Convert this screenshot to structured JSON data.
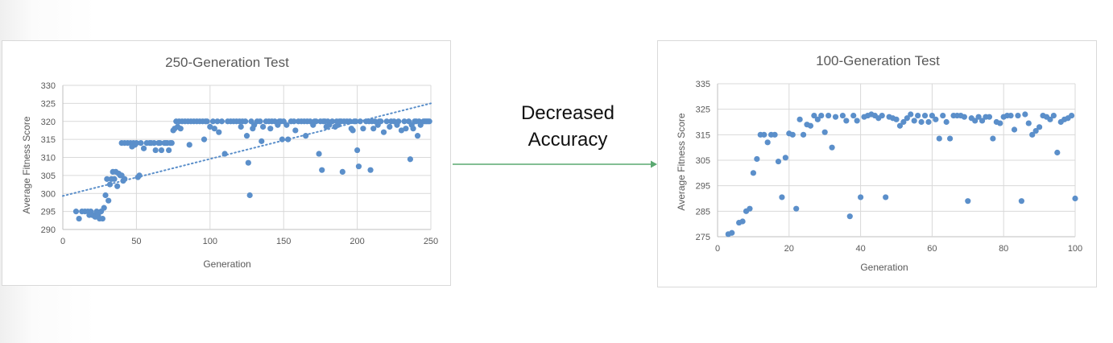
{
  "caption": {
    "line1": "Decreased",
    "line2": "Accuracy"
  },
  "colors": {
    "marker": "#5b8fca",
    "arrow": "#5aa870",
    "grid": "#d9d9d9",
    "text": "#595959"
  },
  "chart_data": [
    {
      "type": "scatter",
      "title": "250-Generation Test",
      "xlabel": "Generation",
      "ylabel": "Average Fitness Score",
      "xlim": [
        0,
        250
      ],
      "ylim": [
        290,
        330
      ],
      "xticks": [
        0,
        50,
        100,
        150,
        200,
        250
      ],
      "yticks": [
        290,
        295,
        300,
        305,
        310,
        315,
        320,
        325,
        330
      ],
      "grid": true,
      "legend": "none",
      "trendline": {
        "type": "linear",
        "style": "dotted",
        "points": [
          [
            0,
            299.3
          ],
          [
            250,
            325
          ]
        ]
      },
      "series": [
        {
          "points": [
            [
              9,
              295
            ],
            [
              11,
              293
            ],
            [
              13,
              295
            ],
            [
              15,
              295
            ],
            [
              17,
              295
            ],
            [
              18,
              294
            ],
            [
              19,
              295
            ],
            [
              20,
              294
            ],
            [
              21,
              294
            ],
            [
              22,
              293.5
            ],
            [
              23,
              295
            ],
            [
              24,
              294
            ],
            [
              25,
              293
            ],
            [
              26,
              295
            ],
            [
              27,
              293
            ],
            [
              28,
              296
            ],
            [
              29,
              299.5
            ],
            [
              30,
              304
            ],
            [
              31,
              298
            ],
            [
              32,
              302.5
            ],
            [
              33,
              304
            ],
            [
              34,
              306
            ],
            [
              35,
              304
            ],
            [
              36,
              306
            ],
            [
              37,
              302
            ],
            [
              38,
              305.5
            ],
            [
              39,
              305
            ],
            [
              40,
              305
            ],
            [
              41,
              303.5
            ],
            [
              42,
              304
            ],
            [
              40,
              314
            ],
            [
              42,
              314
            ],
            [
              44,
              314
            ],
            [
              46,
              314
            ],
            [
              47,
              313
            ],
            [
              48,
              314
            ],
            [
              49,
              313.5
            ],
            [
              50,
              314
            ],
            [
              51,
              304.5
            ],
            [
              52,
              305
            ],
            [
              53,
              314
            ],
            [
              55,
              312.5
            ],
            [
              57,
              314
            ],
            [
              59,
              314
            ],
            [
              60,
              314
            ],
            [
              62,
              314
            ],
            [
              63,
              312
            ],
            [
              65,
              314
            ],
            [
              66,
              314
            ],
            [
              67,
              312
            ],
            [
              69,
              314
            ],
            [
              70,
              314
            ],
            [
              71,
              314
            ],
            [
              72,
              312
            ],
            [
              73,
              314
            ],
            [
              74,
              314
            ],
            [
              75,
              317.5
            ],
            [
              76,
              318
            ],
            [
              77,
              320
            ],
            [
              78,
              318.5
            ],
            [
              79,
              320
            ],
            [
              80,
              318
            ],
            [
              81,
              320
            ],
            [
              83,
              320
            ],
            [
              85,
              320
            ],
            [
              86,
              313.5
            ],
            [
              87,
              320
            ],
            [
              89,
              320
            ],
            [
              91,
              320
            ],
            [
              93,
              320
            ],
            [
              95,
              320
            ],
            [
              96,
              315
            ],
            [
              97,
              320
            ],
            [
              98,
              320
            ],
            [
              100,
              318.5
            ],
            [
              102,
              320
            ],
            [
              103,
              318
            ],
            [
              105,
              320
            ],
            [
              106,
              317
            ],
            [
              108,
              320
            ],
            [
              110,
              311
            ],
            [
              112,
              320
            ],
            [
              114,
              320
            ],
            [
              116,
              320
            ],
            [
              118,
              320
            ],
            [
              120,
              320
            ],
            [
              121,
              318.5
            ],
            [
              122,
              320
            ],
            [
              124,
              320
            ],
            [
              125,
              316
            ],
            [
              126,
              308.5
            ],
            [
              127,
              299.5
            ],
            [
              128,
              320
            ],
            [
              129,
              318
            ],
            [
              130,
              319
            ],
            [
              132,
              320
            ],
            [
              134,
              320
            ],
            [
              135,
              314.5
            ],
            [
              136,
              318.5
            ],
            [
              138,
              320
            ],
            [
              140,
              320
            ],
            [
              141,
              318
            ],
            [
              142,
              320
            ],
            [
              144,
              320
            ],
            [
              146,
              319
            ],
            [
              147,
              320
            ],
            [
              148,
              320
            ],
            [
              149,
              315
            ],
            [
              150,
              320
            ],
            [
              152,
              319
            ],
            [
              153,
              315
            ],
            [
              155,
              320
            ],
            [
              157,
              320
            ],
            [
              158,
              317.5
            ],
            [
              160,
              320
            ],
            [
              162,
              320
            ],
            [
              164,
              320
            ],
            [
              165,
              316
            ],
            [
              166,
              320
            ],
            [
              168,
              320
            ],
            [
              170,
              319
            ],
            [
              171,
              320
            ],
            [
              172,
              320
            ],
            [
              174,
              311
            ],
            [
              175,
              320
            ],
            [
              176,
              306.5
            ],
            [
              177,
              320
            ],
            [
              178,
              320
            ],
            [
              179,
              318.5
            ],
            [
              180,
              320
            ],
            [
              181,
              319
            ],
            [
              183,
              320
            ],
            [
              185,
              318.5
            ],
            [
              186,
              320
            ],
            [
              187,
              319
            ],
            [
              188,
              320
            ],
            [
              189,
              320
            ],
            [
              190,
              306
            ],
            [
              191,
              320
            ],
            [
              193,
              320
            ],
            [
              195,
              320
            ],
            [
              196,
              318
            ],
            [
              197,
              317.5
            ],
            [
              198,
              320
            ],
            [
              199,
              320
            ],
            [
              200,
              312
            ],
            [
              201,
              307.5
            ],
            [
              202,
              320
            ],
            [
              204,
              318
            ],
            [
              206,
              320
            ],
            [
              208,
              320
            ],
            [
              209,
              306.5
            ],
            [
              210,
              320
            ],
            [
              211,
              318
            ],
            [
              212,
              320
            ],
            [
              214,
              319
            ],
            [
              215,
              320
            ],
            [
              216,
              320
            ],
            [
              218,
              317
            ],
            [
              220,
              320
            ],
            [
              222,
              318.5
            ],
            [
              223,
              320
            ],
            [
              225,
              320
            ],
            [
              227,
              319
            ],
            [
              228,
              320
            ],
            [
              230,
              317.5
            ],
            [
              232,
              320
            ],
            [
              233,
              318
            ],
            [
              235,
              320
            ],
            [
              236,
              309.5
            ],
            [
              237,
              319
            ],
            [
              238,
              318
            ],
            [
              239,
              320
            ],
            [
              240,
              320
            ],
            [
              241,
              316
            ],
            [
              242,
              320
            ],
            [
              243,
              319
            ],
            [
              245,
              320
            ],
            [
              246,
              320
            ],
            [
              247,
              320
            ],
            [
              248,
              320
            ],
            [
              249,
              320
            ]
          ]
        }
      ]
    },
    {
      "type": "scatter",
      "title": "100-Generation Test",
      "xlabel": "Generation",
      "ylabel": "Average Fitness Score",
      "xlim": [
        0,
        100
      ],
      "ylim": [
        275,
        335
      ],
      "xticks": [
        0,
        20,
        40,
        60,
        80,
        100
      ],
      "yticks": [
        275,
        285,
        295,
        305,
        315,
        325,
        335
      ],
      "grid": true,
      "legend": "none",
      "series": [
        {
          "points": [
            [
              3,
              276
            ],
            [
              4,
              276.5
            ],
            [
              6,
              280.5
            ],
            [
              7,
              281
            ],
            [
              8,
              285
            ],
            [
              9,
              286
            ],
            [
              10,
              300
            ],
            [
              11,
              305.5
            ],
            [
              12,
              315
            ],
            [
              13,
              315
            ],
            [
              14,
              312
            ],
            [
              15,
              315
            ],
            [
              16,
              315
            ],
            [
              17,
              304.5
            ],
            [
              18,
              290.5
            ],
            [
              19,
              306
            ],
            [
              20,
              315.5
            ],
            [
              21,
              315
            ],
            [
              22,
              286
            ],
            [
              23,
              321
            ],
            [
              24,
              315
            ],
            [
              25,
              319
            ],
            [
              26,
              318.5
            ],
            [
              27,
              322.5
            ],
            [
              28,
              321
            ],
            [
              29,
              322.5
            ],
            [
              30,
              316
            ],
            [
              31,
              322.5
            ],
            [
              32,
              310
            ],
            [
              33,
              322
            ],
            [
              35,
              322.5
            ],
            [
              36,
              320.5
            ],
            [
              37,
              283
            ],
            [
              38,
              322.5
            ],
            [
              39,
              320.5
            ],
            [
              40,
              290.5
            ],
            [
              41,
              322
            ],
            [
              42,
              322.5
            ],
            [
              43,
              323
            ],
            [
              44,
              322.5
            ],
            [
              45,
              321.5
            ],
            [
              46,
              322.5
            ],
            [
              47,
              290.5
            ],
            [
              48,
              322
            ],
            [
              49,
              321.5
            ],
            [
              50,
              321
            ],
            [
              51,
              318.5
            ],
            [
              52,
              320
            ],
            [
              53,
              321.5
            ],
            [
              54,
              323
            ],
            [
              55,
              320.5
            ],
            [
              56,
              322.5
            ],
            [
              57,
              320
            ],
            [
              58,
              322.5
            ],
            [
              59,
              320
            ],
            [
              60,
              322.5
            ],
            [
              61,
              321
            ],
            [
              62,
              313.5
            ],
            [
              63,
              322.5
            ],
            [
              64,
              320
            ],
            [
              65,
              313.5
            ],
            [
              66,
              322.5
            ],
            [
              67,
              322.5
            ],
            [
              68,
              322.5
            ],
            [
              69,
              322
            ],
            [
              70,
              289
            ],
            [
              71,
              321.5
            ],
            [
              72,
              320.5
            ],
            [
              73,
              322
            ],
            [
              74,
              320.5
            ],
            [
              75,
              322
            ],
            [
              76,
              322
            ],
            [
              77,
              313.5
            ],
            [
              78,
              320
            ],
            [
              79,
              319.5
            ],
            [
              80,
              322
            ],
            [
              81,
              322.5
            ],
            [
              82,
              322.5
            ],
            [
              83,
              317
            ],
            [
              84,
              322.5
            ],
            [
              85,
              289
            ],
            [
              86,
              323
            ],
            [
              87,
              319.5
            ],
            [
              88,
              315
            ],
            [
              89,
              316.5
            ],
            [
              90,
              318
            ],
            [
              91,
              322.5
            ],
            [
              92,
              322
            ],
            [
              93,
              321
            ],
            [
              94,
              322.5
            ],
            [
              95,
              308
            ],
            [
              96,
              320
            ],
            [
              97,
              321
            ],
            [
              98,
              321.5
            ],
            [
              99,
              322.5
            ],
            [
              100,
              290
            ]
          ]
        }
      ]
    }
  ]
}
